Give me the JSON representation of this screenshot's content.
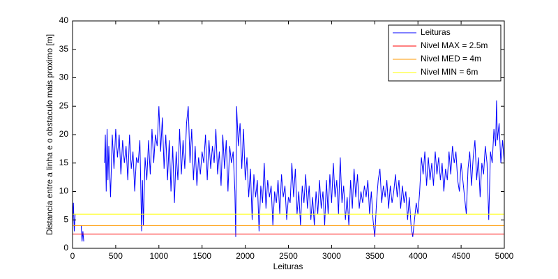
{
  "chart_data": {
    "type": "line",
    "xlabel": "Leituras",
    "ylabel": "Distancia entre a linha e o obstaculo mais proximo [m]",
    "xlim": [
      0,
      5000
    ],
    "xticks": [
      0,
      500,
      1000,
      1500,
      2000,
      2500,
      3000,
      3500,
      4000,
      4500,
      5000
    ],
    "ylim": [
      0,
      40
    ],
    "yticks": [
      0,
      5,
      10,
      15,
      20,
      25,
      30,
      35,
      40
    ],
    "grid": false,
    "legend": "upper right",
    "series": [
      {
        "name": "Leituras",
        "color": "#0000ff",
        "x": [
          0,
          10,
          20,
          30,
          40,
          100,
          110,
          120,
          130,
          140,
          370,
          380,
          390,
          400,
          410,
          420,
          440,
          460,
          480,
          500,
          520,
          540,
          560,
          580,
          600,
          620,
          640,
          660,
          680,
          700,
          720,
          740,
          760,
          780,
          800,
          810,
          820,
          840,
          860,
          880,
          900,
          920,
          940,
          960,
          980,
          1000,
          1020,
          1040,
          1060,
          1080,
          1100,
          1120,
          1140,
          1160,
          1180,
          1200,
          1220,
          1240,
          1260,
          1280,
          1300,
          1320,
          1340,
          1360,
          1380,
          1400,
          1420,
          1440,
          1460,
          1480,
          1500,
          1520,
          1540,
          1560,
          1580,
          1600,
          1620,
          1640,
          1660,
          1680,
          1700,
          1720,
          1740,
          1760,
          1780,
          1800,
          1820,
          1840,
          1860,
          1880,
          1890,
          1900,
          1920,
          1940,
          1960,
          1980,
          2000,
          2020,
          2040,
          2060,
          2080,
          2100,
          2120,
          2140,
          2160,
          2180,
          2200,
          2220,
          2240,
          2260,
          2280,
          2300,
          2320,
          2340,
          2360,
          2380,
          2400,
          2420,
          2440,
          2460,
          2480,
          2500,
          2520,
          2540,
          2560,
          2580,
          2600,
          2620,
          2640,
          2660,
          2680,
          2700,
          2720,
          2740,
          2760,
          2780,
          2800,
          2820,
          2840,
          2860,
          2880,
          2900,
          2920,
          2940,
          2960,
          2980,
          3000,
          3020,
          3040,
          3060,
          3080,
          3100,
          3120,
          3140,
          3160,
          3180,
          3200,
          3220,
          3240,
          3260,
          3280,
          3300,
          3320,
          3340,
          3360,
          3380,
          3400,
          3420,
          3440,
          3460,
          3480,
          3500,
          3520,
          3540,
          3560,
          3580,
          3600,
          3620,
          3640,
          3660,
          3680,
          3700,
          3720,
          3740,
          3760,
          3780,
          3800,
          3820,
          3840,
          3860,
          3880,
          3900,
          3920,
          3940,
          3960,
          3980,
          4000,
          4020,
          4040,
          4060,
          4080,
          4100,
          4120,
          4140,
          4160,
          4180,
          4200,
          4220,
          4240,
          4260,
          4280,
          4300,
          4320,
          4340,
          4360,
          4380,
          4400,
          4420,
          4440,
          4460,
          4480,
          4500,
          4520,
          4540,
          4560,
          4580,
          4600,
          4620,
          4640,
          4660,
          4680,
          4700,
          4720,
          4740,
          4760,
          4780,
          4800,
          4820,
          4840,
          4860,
          4880,
          4900,
          4910,
          4920,
          4940,
          4960,
          4980,
          5000
        ],
        "values": [
          4,
          8,
          3,
          6,
          null,
          4,
          1.2,
          3,
          1.2,
          null,
          15,
          20,
          10,
          21,
          12,
          18,
          9,
          20,
          14,
          21,
          16,
          20,
          13,
          19,
          15,
          18,
          12,
          20,
          14,
          17,
          10,
          16,
          15,
          19,
          3,
          12,
          4,
          16,
          12,
          19,
          13,
          21,
          15,
          20,
          18,
          25,
          17,
          23,
          14,
          20,
          12,
          19,
          10,
          18,
          8,
          17,
          12,
          21,
          13,
          19,
          14,
          22,
          25,
          15,
          21,
          12,
          18,
          11,
          16,
          13,
          17,
          15,
          20,
          12,
          19,
          14,
          18,
          15,
          21,
          13,
          17,
          11,
          20,
          14,
          19,
          10,
          18,
          15,
          17,
          10,
          2,
          25,
          18,
          22,
          14,
          21,
          12,
          16,
          9,
          14,
          5,
          13,
          9,
          12,
          3,
          11,
          8,
          15,
          7,
          12,
          9,
          11,
          4,
          10,
          8,
          12,
          6,
          13,
          9,
          11,
          5,
          9,
          8,
          15,
          9,
          14,
          6,
          10,
          4,
          11,
          8,
          13,
          7,
          11,
          5,
          9,
          4,
          10,
          6,
          12,
          7,
          10,
          4,
          12,
          6,
          13,
          8,
          15,
          9,
          12,
          6,
          16,
          8,
          11,
          5,
          9,
          4,
          12,
          7,
          14,
          9,
          13,
          7,
          10,
          8,
          11,
          9,
          12,
          6,
          10,
          5,
          2,
          8,
          12,
          14,
          8,
          11,
          9,
          12,
          7,
          11,
          8,
          10,
          13,
          9,
          12,
          7,
          11,
          8,
          10,
          5,
          9,
          4,
          2,
          5,
          8,
          6,
          10,
          16,
          13,
          17,
          11,
          16,
          12,
          15,
          11,
          17,
          13,
          16,
          12,
          15,
          10,
          14,
          12,
          17,
          13,
          18,
          15,
          17,
          12,
          10,
          15,
          12,
          9,
          6,
          14,
          17,
          11,
          16,
          19,
          12,
          16,
          9,
          15,
          13,
          18,
          15,
          5,
          17,
          15,
          21,
          18,
          26,
          19,
          22,
          15,
          19,
          15
        ]
      },
      {
        "name": "Nivel MAX = 2.5m",
        "color": "#ff0000",
        "x": [
          0,
          5000
        ],
        "values": [
          2.5,
          2.5
        ]
      },
      {
        "name": "Nivel MED = 4m",
        "color": "#ff9900",
        "x": [
          0,
          5000
        ],
        "values": [
          4,
          4
        ]
      },
      {
        "name": "Nivel MIN = 6m",
        "color": "#ffff00",
        "x": [
          0,
          5000
        ],
        "values": [
          6,
          6
        ]
      }
    ]
  }
}
